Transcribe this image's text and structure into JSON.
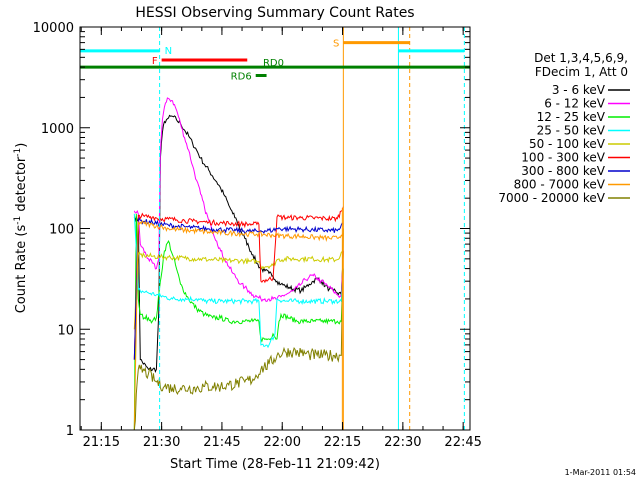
{
  "chart_data": {
    "type": "line",
    "title": "HESSI Observing Summary Count Rates",
    "xlabel": "Start Time (28-Feb-11 21:09:42)",
    "ylabel": "Count Rate (s⁻¹ detector⁻¹)",
    "ylabel_parts": {
      "main": "Count Rate (s",
      "sup1": "-1",
      "mid": " detector",
      "sup2": "-1",
      "end": ")"
    },
    "x_units": "minutes after 21:09:42",
    "xlim": [
      0,
      97
    ],
    "ylim": [
      1,
      10000
    ],
    "yscale": "log",
    "grid": false,
    "x_ticks": [
      {
        "label": "21:15",
        "value": 5.3
      },
      {
        "label": "21:30",
        "value": 20.3
      },
      {
        "label": "21:45",
        "value": 35.3
      },
      {
        "label": "22:00",
        "value": 50.3
      },
      {
        "label": "22:15",
        "value": 65.3
      },
      {
        "label": "22:30",
        "value": 80.3
      },
      {
        "label": "22:45",
        "value": 95.3
      }
    ],
    "y_ticks": [
      {
        "label": "1",
        "value": 1
      },
      {
        "label": "10",
        "value": 10
      },
      {
        "label": "100",
        "value": 100
      },
      {
        "label": "1000",
        "value": 1000
      },
      {
        "label": "10000",
        "value": 10000
      }
    ],
    "legend": {
      "position": "right",
      "header": [
        "Det 1,3,4,5,6,9,",
        "FDecim 1, Att 0"
      ]
    },
    "series": [
      {
        "name": "3 - 6 keV",
        "color": "#000000",
        "x": [
          13.5,
          14.5,
          15,
          17,
          19,
          19.6,
          20,
          20.5,
          21,
          21.5,
          22,
          23,
          24,
          25,
          26,
          27,
          28,
          29,
          30,
          31,
          32,
          33,
          34,
          35,
          36,
          37,
          38,
          39,
          40,
          41,
          42,
          43,
          44,
          45,
          46,
          47,
          48,
          49,
          50,
          51,
          52,
          53,
          54,
          55,
          56,
          57,
          58,
          59,
          60,
          61,
          62,
          63,
          64,
          65,
          65.5
        ],
        "y": [
          130,
          120,
          5,
          4,
          4,
          15,
          500,
          900,
          1150,
          1200,
          1250,
          1300,
          1200,
          1100,
          950,
          830,
          700,
          600,
          500,
          430,
          380,
          330,
          290,
          250,
          210,
          170,
          140,
          120,
          95,
          80,
          65,
          55,
          45,
          40,
          38,
          36,
          34,
          30,
          28,
          27,
          26,
          25,
          25,
          24,
          26,
          28,
          30,
          32,
          30,
          27,
          25,
          24,
          23,
          22,
          60
        ]
      },
      {
        "name": "6 - 12 keV",
        "color": "#ff00ff",
        "x": [
          13.5,
          14.5,
          15,
          17,
          19,
          19.6,
          20,
          20.5,
          21,
          21.5,
          22,
          23,
          24,
          25,
          26,
          27,
          28,
          29,
          30,
          31,
          32,
          33,
          34,
          35,
          36,
          37,
          38,
          39,
          40,
          41,
          42,
          43,
          44,
          45,
          46,
          47,
          48,
          49,
          50,
          51,
          52,
          53,
          54,
          55,
          56,
          57,
          58,
          59,
          60,
          61,
          62,
          63,
          64,
          65,
          65.5
        ],
        "y": [
          150,
          140,
          70,
          50,
          40,
          50,
          600,
          1200,
          1600,
          1800,
          1950,
          1850,
          1500,
          1100,
          800,
          600,
          420,
          300,
          220,
          160,
          120,
          95,
          75,
          60,
          50,
          42,
          36,
          32,
          28,
          26,
          24,
          22,
          21,
          20,
          20,
          20,
          20,
          20,
          21,
          22,
          23,
          24,
          26,
          28,
          31,
          33,
          34,
          32,
          30,
          28,
          26,
          24,
          22,
          21,
          60
        ]
      },
      {
        "name": "12 - 25 keV",
        "color": "#00ee00",
        "x": [
          13.5,
          14,
          14.5,
          15,
          16,
          17,
          18,
          19,
          20,
          21,
          22,
          23,
          24,
          25,
          27,
          29,
          31,
          33,
          35,
          37,
          39,
          41,
          43,
          44.5,
          45,
          47,
          48,
          49,
          49.5,
          50,
          52,
          54,
          56,
          58,
          60,
          62,
          64,
          65,
          65.5
        ],
        "y": [
          1,
          140,
          20,
          14,
          13,
          13,
          12,
          13,
          30,
          60,
          75,
          55,
          40,
          28,
          20,
          16,
          14,
          13,
          13,
          12,
          12,
          12,
          12,
          12,
          8,
          8,
          9,
          8,
          12,
          14,
          13,
          12,
          12,
          12,
          12,
          12,
          12,
          12,
          40
        ]
      },
      {
        "name": "25 - 50 keV",
        "color": "#00ffff",
        "x": [
          13.5,
          14.5,
          15,
          17,
          19,
          21,
          23,
          25,
          27,
          29,
          31,
          33,
          35,
          37,
          39,
          41,
          43,
          44.5,
          45,
          47,
          48.5,
          49,
          51,
          53,
          55,
          57,
          59,
          61,
          63,
          65,
          65.5
        ],
        "y": [
          140,
          25,
          24,
          23,
          22,
          21,
          20,
          20,
          20,
          20,
          19,
          19,
          19,
          19,
          19,
          19,
          19,
          19,
          7,
          7,
          9,
          20,
          19,
          19,
          19,
          19,
          19,
          19,
          19,
          19,
          40
        ]
      },
      {
        "name": "50 - 100 keV",
        "color": "#cccc00",
        "x": [
          13.5,
          14.5,
          16,
          18,
          20,
          22,
          24,
          26,
          28,
          30,
          32,
          34,
          36,
          38,
          40,
          42,
          44,
          44.5,
          45,
          48,
          49,
          52,
          55,
          58,
          61,
          64,
          65.5
        ],
        "y": [
          10,
          55,
          54,
          53,
          52,
          52,
          51,
          51,
          50,
          50,
          49,
          49,
          48,
          48,
          48,
          47,
          47,
          47,
          42,
          43,
          49,
          50,
          50,
          50,
          49,
          49,
          60
        ]
      },
      {
        "name": "100 - 300 keV",
        "color": "#ff0000",
        "x": [
          13.5,
          14.5,
          16,
          18,
          20,
          22,
          24,
          26,
          28,
          30,
          32,
          34,
          36,
          38,
          40,
          42,
          44,
          44.5,
          45,
          48,
          49,
          52,
          55,
          58,
          61,
          64,
          65.5
        ],
        "y": [
          5,
          135,
          132,
          130,
          125,
          124,
          122,
          120,
          118,
          117,
          115,
          114,
          113,
          112,
          111,
          110,
          110,
          110,
          30,
          32,
          130,
          128,
          128,
          127,
          126,
          125,
          165
        ]
      },
      {
        "name": "300 - 800 keV",
        "color": "#0000cc",
        "x": [
          13.5,
          14.5,
          16,
          18,
          20,
          22,
          24,
          26,
          28,
          30,
          32,
          34,
          36,
          38,
          40,
          42,
          44,
          44.5,
          45,
          48,
          49,
          52,
          55,
          58,
          61,
          64,
          65.5
        ],
        "y": [
          5,
          120,
          118,
          115,
          110,
          108,
          105,
          104,
          102,
          100,
          99,
          98,
          97,
          96,
          95,
          94,
          94,
          93,
          95,
          96,
          100,
          99,
          98,
          97,
          96,
          95,
          110
        ]
      },
      {
        "name": "800 - 7000 keV",
        "color": "#ff9900",
        "x": [
          13.5,
          14.5,
          16,
          18,
          20,
          22,
          24,
          26,
          28,
          30,
          32,
          34,
          36,
          38,
          40,
          42,
          44,
          46,
          48,
          50,
          52,
          54,
          56,
          58,
          60,
          62,
          64,
          65.5
        ],
        "y": [
          1,
          115,
          112,
          108,
          104,
          100,
          98,
          96,
          95,
          94,
          92,
          91,
          90,
          90,
          89,
          88,
          88,
          87,
          86,
          85,
          84,
          84,
          83,
          82,
          81,
          80,
          80,
          90
        ]
      },
      {
        "name": "7000 - 20000 keV",
        "color": "#808000",
        "x": [
          13.5,
          14.5,
          15,
          17,
          19,
          21,
          23,
          25,
          27,
          29,
          31,
          33,
          35,
          37,
          39,
          41,
          43,
          45,
          47,
          49,
          51,
          53,
          55,
          57,
          59,
          61,
          63,
          65,
          65.5
        ],
        "y": [
          1,
          4,
          4,
          3.6,
          3,
          2.7,
          2.6,
          2.6,
          2.6,
          2.6,
          2.7,
          2.7,
          2.7,
          2.8,
          2.9,
          3.0,
          3.2,
          4.0,
          4.5,
          5.5,
          6.0,
          6.0,
          5.8,
          5.6,
          5.5,
          5.5,
          5.5,
          5.5,
          100
        ]
      }
    ],
    "annotations": {
      "vertical_lines": [
        {
          "x": 19.8,
          "color": "#00ffff",
          "style": "dashed"
        },
        {
          "x": 65.5,
          "color": "#ff9900",
          "style": "solid"
        },
        {
          "x": 79.2,
          "color": "#00ffff",
          "style": "solid"
        },
        {
          "x": 82.0,
          "color": "#ff9900",
          "style": "dashed"
        },
        {
          "x": 95.6,
          "color": "#00ffff",
          "style": "dashed"
        }
      ],
      "intervals": [
        {
          "label": "N",
          "color": "#00ffff",
          "x0": 0,
          "x1": 19.8,
          "y": 5800,
          "label_side": "right"
        },
        {
          "label": "",
          "color": "#00ffff",
          "x0": 79.2,
          "x1": 95.6,
          "y": 5800
        },
        {
          "label": "F",
          "color": "#ff0000",
          "x0": 20.3,
          "x1": 41.6,
          "y": 4700,
          "label_side": "left"
        },
        {
          "label": "S",
          "color": "#ff9900",
          "x0": 65.5,
          "x1": 82.0,
          "y": 7000,
          "label_side": "left"
        },
        {
          "label": "RD0",
          "color": "#008000",
          "x0": 0,
          "x1": 97,
          "y": 4000,
          "label_side": "above"
        },
        {
          "label": "RD6",
          "color": "#008000",
          "x0": 43.7,
          "x1": 46.4,
          "y": 3300,
          "label_side": "left"
        }
      ]
    },
    "footer_stamp": "1-Mar-2011 01:54"
  }
}
